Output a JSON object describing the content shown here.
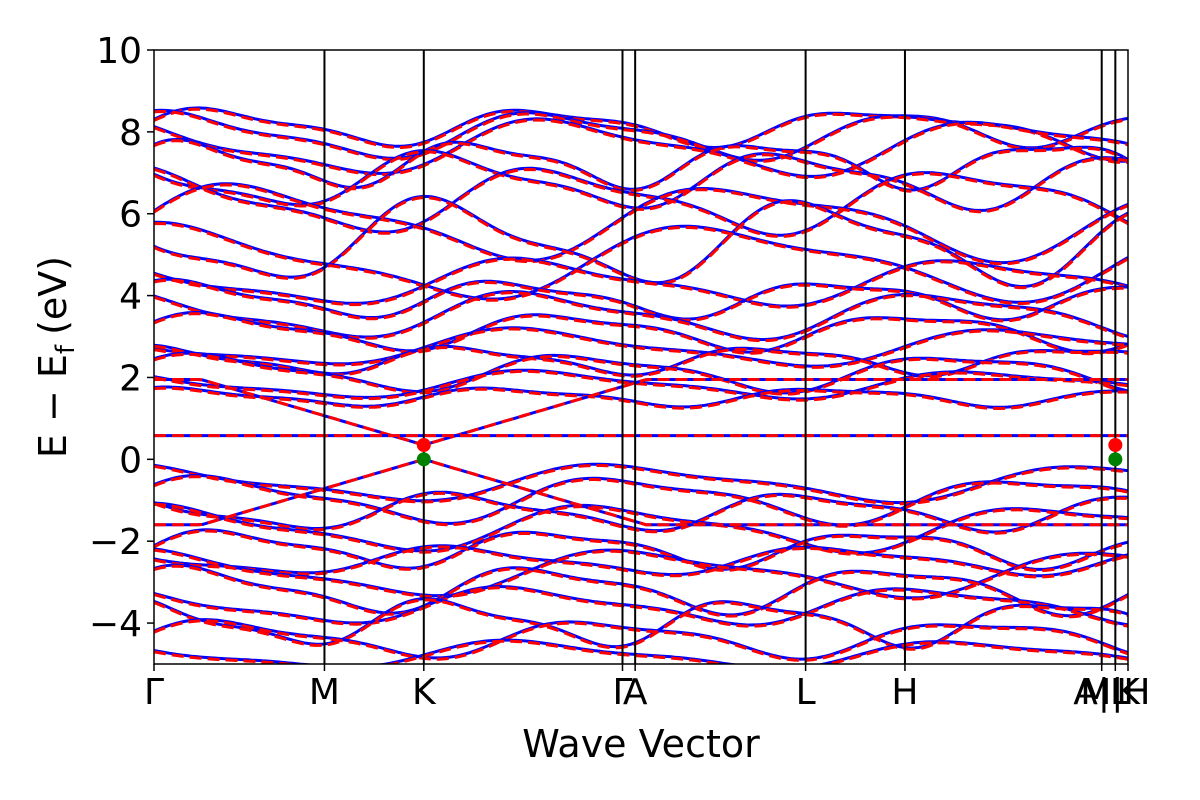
{
  "chart_data": {
    "type": "line",
    "xlabel": "Wave Vector",
    "ylabel": "E − E",
    "ylabel_subscript": "f",
    "ylabel_unit": "(eV)",
    "ylim": [
      -5,
      10
    ],
    "yticks": [
      {
        "value": 10,
        "label": "10"
      },
      {
        "value": 8,
        "label": "8"
      },
      {
        "value": 6,
        "label": "6"
      },
      {
        "value": 4,
        "label": "4"
      },
      {
        "value": 2,
        "label": "2"
      },
      {
        "value": 0,
        "label": "0"
      },
      {
        "value": -2,
        "label": "−2"
      },
      {
        "value": -4,
        "label": "−4"
      }
    ],
    "kpoints": [
      {
        "pos": 0.0,
        "label": "Γ"
      },
      {
        "pos": 0.175,
        "label": "M"
      },
      {
        "pos": 0.277,
        "label": "K"
      },
      {
        "pos": 0.481,
        "label": "Γ"
      },
      {
        "pos": 0.494,
        "label": "A"
      },
      {
        "pos": 0.669,
        "label": "L"
      },
      {
        "pos": 0.771,
        "label": "H"
      },
      {
        "pos": 0.973,
        "label": "A|L"
      },
      {
        "pos": 0.987,
        "label": "M|H"
      },
      {
        "pos": 1.0,
        "label": "K"
      }
    ],
    "series": [
      {
        "name": "",
        "color": "#0000ff",
        "style": "solid"
      },
      {
        "name": "",
        "color": "#ff0000",
        "style": "dashed"
      }
    ],
    "markers": [
      {
        "k": 0.277,
        "e": 0.35,
        "color": "#ff0000"
      },
      {
        "k": 0.277,
        "e": 0.0,
        "color": "#008000"
      },
      {
        "k": 0.987,
        "e": 0.35,
        "color": "#ff0000"
      },
      {
        "k": 0.987,
        "e": 0.0,
        "color": "#008000"
      }
    ],
    "flat_band": {
      "e": 0.58
    },
    "bands": [
      {
        "base": 8.1,
        "amp": 0.4,
        "f": 3.0,
        "p": 0.3
      },
      {
        "base": 7.9,
        "amp": 0.5,
        "f": 2.6,
        "p": 1.1
      },
      {
        "base": 7.6,
        "amp": 0.6,
        "f": 2.2,
        "p": 2.0
      },
      {
        "base": 7.2,
        "amp": 0.5,
        "f": 3.4,
        "p": 0.7
      },
      {
        "base": 6.8,
        "amp": 0.6,
        "f": 2.8,
        "p": 2.6
      },
      {
        "base": 6.3,
        "amp": 0.7,
        "f": 2.4,
        "p": 1.6
      },
      {
        "base": 5.8,
        "amp": 0.8,
        "f": 2.0,
        "p": 0.2
      },
      {
        "base": 5.3,
        "amp": 0.9,
        "f": 2.6,
        "p": 3.0
      },
      {
        "base": 4.8,
        "amp": 0.8,
        "f": 1.8,
        "p": 1.2
      },
      {
        "base": 4.3,
        "amp": 0.5,
        "f": 2.2,
        "p": 2.4
      },
      {
        "base": 3.9,
        "amp": 0.4,
        "f": 3.0,
        "p": 0.9
      },
      {
        "base": 3.5,
        "amp": 0.5,
        "f": 2.4,
        "p": 1.9
      },
      {
        "base": 3.1,
        "amp": 0.4,
        "f": 2.8,
        "p": 0.4
      },
      {
        "base": 2.7,
        "amp": 0.4,
        "f": 2.0,
        "p": 2.9
      },
      {
        "base": 2.4,
        "amp": 0.3,
        "f": 3.2,
        "p": 1.4
      },
      {
        "base": 2.1,
        "amp": 0.4,
        "f": 2.6,
        "p": 0.6
      },
      {
        "base": 1.8,
        "amp": 0.3,
        "f": 2.2,
        "p": 2.2
      },
      {
        "base": 1.5,
        "amp": 0.2,
        "f": 3.0,
        "p": 1.0
      },
      {
        "base": -0.6,
        "amp": 0.4,
        "f": 2.0,
        "p": 1.7
      },
      {
        "base": -1.0,
        "amp": 0.5,
        "f": 2.4,
        "p": 0.5
      },
      {
        "base": -1.3,
        "amp": 0.4,
        "f": 2.8,
        "p": 2.3
      },
      {
        "base": -1.7,
        "amp": 0.5,
        "f": 2.2,
        "p": 1.3
      },
      {
        "base": -2.2,
        "amp": 0.4,
        "f": 3.0,
        "p": 0.1
      },
      {
        "base": -2.5,
        "amp": 0.3,
        "f": 2.6,
        "p": 2.7
      },
      {
        "base": -2.8,
        "amp": 0.5,
        "f": 2.0,
        "p": 1.5
      },
      {
        "base": -3.2,
        "amp": 0.5,
        "f": 2.8,
        "p": 0.8
      },
      {
        "base": -3.6,
        "amp": 0.4,
        "f": 2.4,
        "p": 2.1
      },
      {
        "base": -4.0,
        "amp": 0.5,
        "f": 3.2,
        "p": 1.8
      },
      {
        "base": -4.4,
        "amp": 0.4,
        "f": 2.6,
        "p": 0.3
      },
      {
        "base": -4.8,
        "amp": 0.3,
        "f": 2.2,
        "p": 2.5
      }
    ]
  }
}
